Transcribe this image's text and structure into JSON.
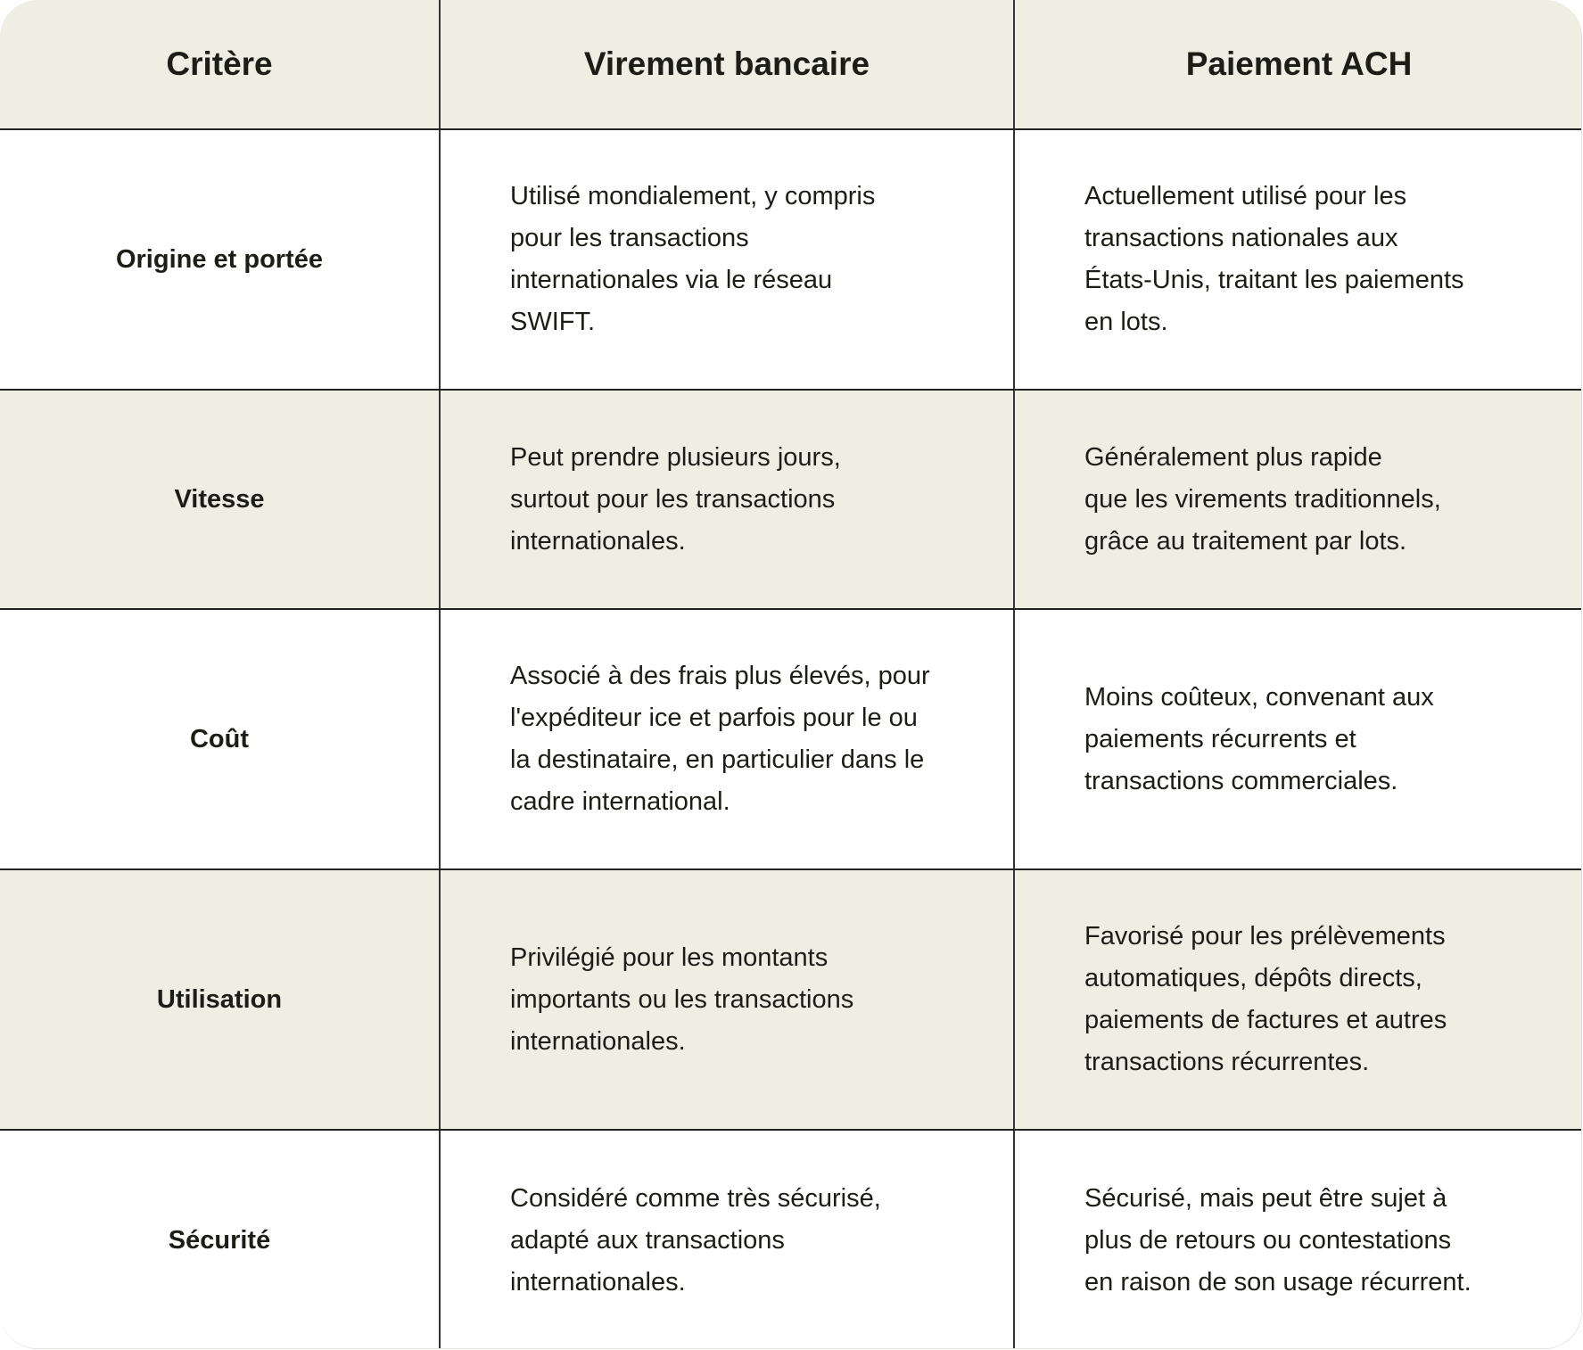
{
  "headers": [
    "Critère",
    "Virement bancaire",
    "Paiement ACH"
  ],
  "rows": [
    {
      "criterion": "Origine et portée",
      "wire": [
        "Utilisé mondialement, y compris",
        "pour les transactions",
        "internationales via le réseau",
        "SWIFT."
      ],
      "ach": [
        "Actuellement utilisé pour les",
        "transactions nationales aux",
        "États-Unis, traitant les paiements",
        "en lots."
      ]
    },
    {
      "criterion": "Vitesse",
      "wire": [
        "Peut prendre plusieurs jours,",
        "surtout pour les transactions",
        "internationales."
      ],
      "ach": [
        "Généralement plus rapide",
        "que les virements traditionnels,",
        "grâce au traitement par lots."
      ]
    },
    {
      "criterion": "Coût",
      "wire": [
        "Associé à des frais plus élevés, pour",
        "l'expéditeur ice et parfois pour le ou",
        "la destinataire, en particulier dans le",
        "cadre international."
      ],
      "ach": [
        "Moins coûteux, convenant aux",
        "paiements récurrents et",
        "transactions commerciales."
      ]
    },
    {
      "criterion": "Utilisation",
      "wire": [
        "Privilégié pour les montants",
        "importants ou les transactions",
        "internationales."
      ],
      "ach": [
        "Favorisé pour les prélèvements",
        "automatiques, dépôts directs,",
        "paiements de factures et autres",
        "transactions récurrentes."
      ]
    },
    {
      "criterion": "Sécurité",
      "wire": [
        "Considéré comme très sécurisé,",
        "adapté aux transactions",
        "internationales."
      ],
      "ach": [
        "Sécurisé, mais peut être sujet à",
        "plus de retours ou contestations",
        "en raison de son usage récurrent."
      ]
    }
  ],
  "colors": {
    "header_bg": "#efeee3",
    "alt_row_bg": "#efeee3",
    "border": "#222222",
    "text": "#1d1d17"
  }
}
